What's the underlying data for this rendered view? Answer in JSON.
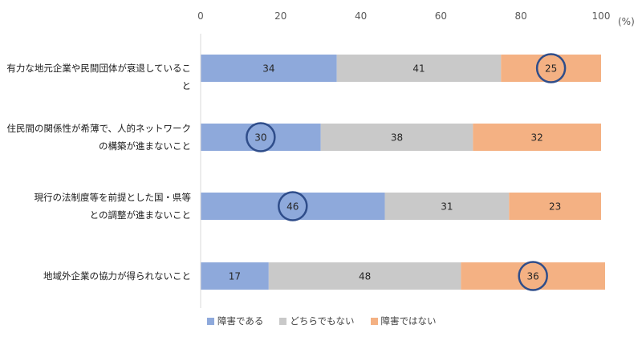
{
  "chart_data": {
    "type": "bar",
    "orientation": "horizontal",
    "stacked": true,
    "unit_label": "(%)",
    "xlim": [
      0,
      100
    ],
    "x_ticks": [
      "0",
      "20",
      "40",
      "60",
      "80",
      "100"
    ],
    "categories": [
      [
        "有力な地元企業や民間団体が衰退していること"
      ],
      [
        "住民間の関係性が希薄で、人的ネットワーク",
        "の構築が進まないこと"
      ],
      [
        "現行の法制度等を前提とした国・県等",
        "との調整が進まないこと"
      ],
      [
        "地域外企業の協力が得られないこと"
      ]
    ],
    "series": [
      {
        "name": "障害である",
        "color": "#8ea9db",
        "values": [
          34,
          30,
          46,
          17
        ]
      },
      {
        "name": "どちらでもない",
        "color": "#c9c9c9",
        "values": [
          41,
          38,
          31,
          48
        ]
      },
      {
        "name": "障害ではない",
        "color": "#f4b183",
        "values": [
          25,
          32,
          23,
          36
        ]
      }
    ],
    "highlighted_series_per_category": [
      2,
      0,
      0,
      2
    ],
    "highlight_color": "#2f4d8a",
    "legend_position": "bottom-left",
    "grid": false
  }
}
